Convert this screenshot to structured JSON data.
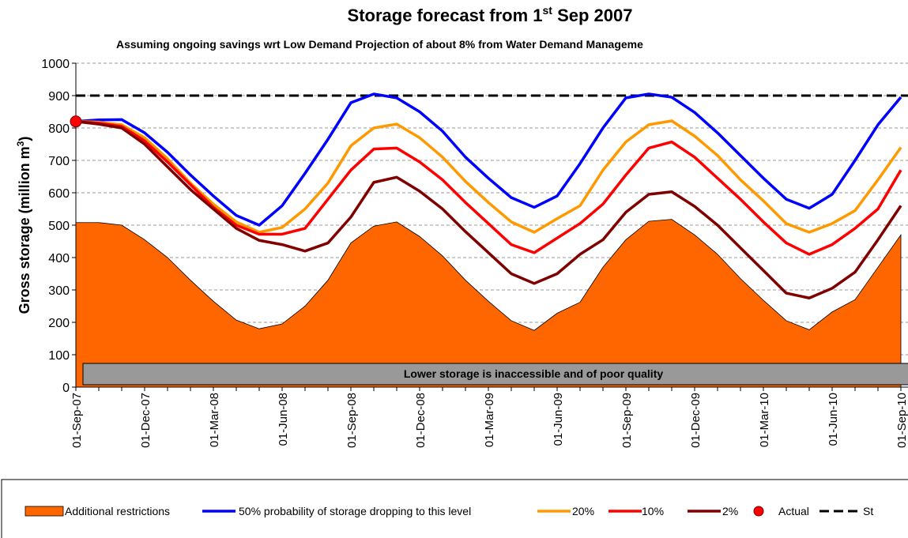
{
  "chart_data": {
    "type": "line",
    "title": "Storage forecast from 1",
    "title_superscript": "st",
    "title_rest": " Sep 2007",
    "subtitle": "Assuming ongoing savings wrt Low Demand Projection of about 8% from Water Demand Manageme",
    "y_label": "Gross storage (million m",
    "y_label_superscript": "3",
    "y_label_rest": ")",
    "annotation": "Lower storage is inaccessible and of poor quality",
    "categories": [
      "01-Sep-07",
      null,
      null,
      "01-Dec-07",
      null,
      null,
      "01-Mar-08",
      null,
      null,
      "01-Jun-08",
      null,
      null,
      "01-Sep-08",
      null,
      null,
      "01-Dec-08",
      null,
      null,
      "01-Mar-09",
      null,
      null,
      "01-Jun-09",
      null,
      null,
      "01-Sep-09",
      null,
      null,
      "01-Dec-09",
      null,
      null,
      "01-Mar-10",
      null,
      null,
      "01-Jun-10",
      null,
      null,
      "01-Sep-10"
    ],
    "series": [
      {
        "name": "Additional restrictions",
        "type": "area",
        "color": "#ff6600",
        "values": [
          508,
          508,
          500,
          455,
          400,
          330,
          265,
          207,
          180,
          195,
          250,
          330,
          445,
          497,
          510,
          465,
          405,
          330,
          265,
          205,
          175,
          228,
          262,
          370,
          455,
          512,
          518,
          470,
          410,
          335,
          268,
          205,
          177,
          232,
          270,
          370,
          470
        ]
      },
      {
        "name": "50% probability of storage dropping to this level",
        "type": "line",
        "color": "#0000ff",
        "values": [
          820,
          825,
          826,
          785,
          725,
          655,
          590,
          530,
          500,
          560,
          660,
          765,
          878,
          905,
          893,
          850,
          790,
          710,
          645,
          585,
          555,
          590,
          690,
          800,
          893,
          905,
          895,
          848,
          785,
          715,
          645,
          580,
          552,
          595,
          700,
          810,
          895
        ]
      },
      {
        "name": "20%",
        "type": "line",
        "color": "#ff9900",
        "values": [
          820,
          818,
          810,
          770,
          705,
          630,
          565,
          510,
          478,
          493,
          550,
          630,
          745,
          800,
          812,
          770,
          710,
          635,
          570,
          510,
          478,
          520,
          560,
          670,
          757,
          810,
          822,
          775,
          715,
          640,
          575,
          505,
          478,
          505,
          545,
          640,
          740
        ]
      },
      {
        "name": "10%",
        "type": "line",
        "color": "#ff0000",
        "values": [
          820,
          815,
          805,
          760,
          695,
          625,
          555,
          500,
          472,
          472,
          490,
          580,
          670,
          735,
          738,
          695,
          640,
          570,
          505,
          440,
          415,
          460,
          505,
          565,
          655,
          738,
          757,
          710,
          645,
          580,
          510,
          445,
          410,
          440,
          490,
          550,
          670
        ]
      },
      {
        "name": "2%",
        "type": "line",
        "color": "#800000",
        "values": [
          820,
          812,
          800,
          750,
          680,
          610,
          550,
          490,
          453,
          440,
          420,
          445,
          525,
          632,
          648,
          605,
          550,
          480,
          415,
          350,
          320,
          350,
          410,
          455,
          540,
          595,
          603,
          558,
          500,
          430,
          360,
          290,
          275,
          305,
          355,
          455,
          560
        ]
      },
      {
        "name": "Actual",
        "type": "scatter",
        "color": "#ff0000",
        "values": [
          820,
          null,
          null,
          null,
          null,
          null,
          null,
          null,
          null,
          null,
          null,
          null,
          null,
          null,
          null,
          null,
          null,
          null,
          null,
          null,
          null,
          null,
          null,
          null,
          null,
          null,
          null,
          null,
          null,
          null,
          null,
          null,
          null,
          null,
          null,
          null,
          null
        ]
      }
    ],
    "reference_line": {
      "name": "St",
      "value": 900,
      "color": "#000000"
    },
    "ylim": [
      0,
      1000
    ],
    "yticks": [
      0,
      100,
      200,
      300,
      400,
      500,
      600,
      700,
      800,
      900,
      1000
    ],
    "grid": true,
    "legend": "bottom"
  }
}
